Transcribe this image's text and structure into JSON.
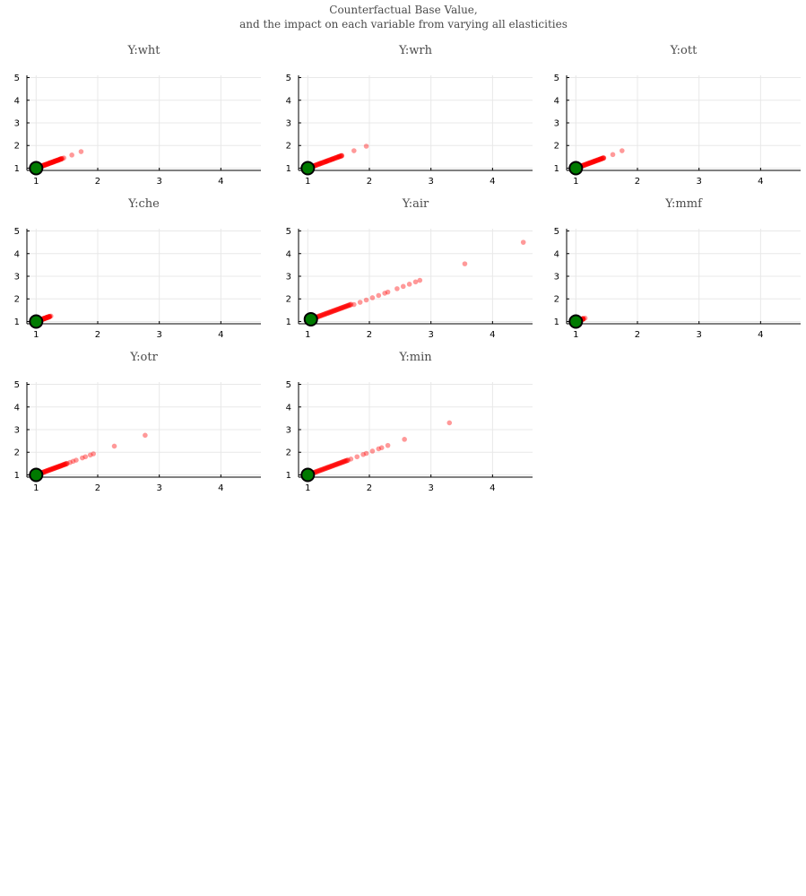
{
  "figure": {
    "title_line1": "Counterfactual Base Value,",
    "title_line2": "and the impact on each variable from varying all elasticities"
  },
  "style": {
    "point_color": "#ff0000",
    "base_color": "#007a00",
    "base_edge": "#000000"
  },
  "chart_data": [
    {
      "type": "scatter",
      "title": "Y:wht",
      "xlim": [
        0.85,
        4.65
      ],
      "ylim": [
        0.9,
        5.1
      ],
      "xticks": [
        1,
        2,
        3,
        4
      ],
      "yticks": [
        1,
        2,
        3,
        4,
        5
      ],
      "grid": true,
      "base": {
        "x": 1.0,
        "y": 1.0
      },
      "dense_to": 1.42,
      "points": [
        [
          1.05,
          1.05
        ],
        [
          1.1,
          1.1
        ],
        [
          1.15,
          1.15
        ],
        [
          1.2,
          1.2
        ],
        [
          1.25,
          1.25
        ],
        [
          1.3,
          1.3
        ],
        [
          1.35,
          1.35
        ],
        [
          1.4,
          1.4
        ],
        [
          1.45,
          1.45
        ],
        [
          1.58,
          1.58
        ],
        [
          1.73,
          1.73
        ]
      ]
    },
    {
      "type": "scatter",
      "title": "Y:wrh",
      "xlim": [
        0.85,
        4.65
      ],
      "ylim": [
        0.9,
        5.1
      ],
      "xticks": [
        1,
        2,
        3,
        4
      ],
      "yticks": [
        1,
        2,
        3,
        4,
        5
      ],
      "grid": true,
      "base": {
        "x": 1.0,
        "y": 1.0
      },
      "dense_to": 1.55,
      "points": [
        [
          1.05,
          1.05
        ],
        [
          1.1,
          1.1
        ],
        [
          1.2,
          1.2
        ],
        [
          1.3,
          1.3
        ],
        [
          1.4,
          1.4
        ],
        [
          1.5,
          1.5
        ],
        [
          1.55,
          1.55
        ],
        [
          1.75,
          1.77
        ],
        [
          1.95,
          1.97
        ]
      ]
    },
    {
      "type": "scatter",
      "title": "Y:ott",
      "xlim": [
        0.85,
        4.65
      ],
      "ylim": [
        0.9,
        5.1
      ],
      "xticks": [
        1,
        2,
        3,
        4
      ],
      "yticks": [
        1,
        2,
        3,
        4,
        5
      ],
      "grid": true,
      "base": {
        "x": 1.0,
        "y": 1.0
      },
      "dense_to": 1.45,
      "points": [
        [
          1.05,
          1.05
        ],
        [
          1.1,
          1.1
        ],
        [
          1.2,
          1.2
        ],
        [
          1.3,
          1.3
        ],
        [
          1.4,
          1.4
        ],
        [
          1.45,
          1.45
        ],
        [
          1.6,
          1.6
        ],
        [
          1.75,
          1.77
        ]
      ]
    },
    {
      "type": "scatter",
      "title": "Y:che",
      "xlim": [
        0.85,
        4.65
      ],
      "ylim": [
        0.9,
        5.1
      ],
      "xticks": [
        1,
        2,
        3,
        4
      ],
      "yticks": [
        1,
        2,
        3,
        4,
        5
      ],
      "grid": true,
      "base": {
        "x": 1.0,
        "y": 1.0
      },
      "dense_to": 1.22,
      "points": [
        [
          1.05,
          1.05
        ],
        [
          1.1,
          1.1
        ],
        [
          1.15,
          1.15
        ],
        [
          1.2,
          1.2
        ],
        [
          1.24,
          1.24
        ]
      ]
    },
    {
      "type": "scatter",
      "title": "Y:air",
      "xlim": [
        0.85,
        4.65
      ],
      "ylim": [
        0.9,
        5.1
      ],
      "xticks": [
        1,
        2,
        3,
        4
      ],
      "yticks": [
        1,
        2,
        3,
        4,
        5
      ],
      "grid": true,
      "base": {
        "x": 1.05,
        "y": 1.1
      },
      "dense_to": 1.7,
      "points": [
        [
          1.75,
          1.75
        ],
        [
          1.85,
          1.85
        ],
        [
          1.95,
          1.95
        ],
        [
          2.05,
          2.05
        ],
        [
          2.15,
          2.15
        ],
        [
          2.25,
          2.25
        ],
        [
          2.3,
          2.3
        ],
        [
          2.45,
          2.45
        ],
        [
          2.55,
          2.55
        ],
        [
          2.65,
          2.65
        ],
        [
          2.75,
          2.75
        ],
        [
          2.82,
          2.82
        ],
        [
          3.55,
          3.55
        ],
        [
          4.5,
          4.5
        ]
      ]
    },
    {
      "type": "scatter",
      "title": "Y:mmf",
      "xlim": [
        0.85,
        4.65
      ],
      "ylim": [
        0.9,
        5.1
      ],
      "xticks": [
        1,
        2,
        3,
        4
      ],
      "yticks": [
        1,
        2,
        3,
        4,
        5
      ],
      "grid": true,
      "base": {
        "x": 1.0,
        "y": 1.0
      },
      "dense_to": 1.12,
      "points": [
        [
          1.05,
          1.05
        ],
        [
          1.1,
          1.1
        ],
        [
          1.15,
          1.15
        ]
      ]
    },
    {
      "type": "scatter",
      "title": "Y:otr",
      "xlim": [
        0.85,
        4.65
      ],
      "ylim": [
        0.9,
        5.1
      ],
      "xticks": [
        1,
        2,
        3,
        4
      ],
      "yticks": [
        1,
        2,
        3,
        4,
        5
      ],
      "grid": true,
      "base": {
        "x": 1.0,
        "y": 1.0
      },
      "dense_to": 1.5,
      "points": [
        [
          1.55,
          1.55
        ],
        [
          1.6,
          1.6
        ],
        [
          1.65,
          1.65
        ],
        [
          1.75,
          1.75
        ],
        [
          1.8,
          1.8
        ],
        [
          1.88,
          1.88
        ],
        [
          1.93,
          1.93
        ],
        [
          2.27,
          2.27
        ],
        [
          2.77,
          2.75
        ]
      ]
    },
    {
      "type": "scatter",
      "title": "Y:min",
      "xlim": [
        0.85,
        4.65
      ],
      "ylim": [
        0.9,
        5.1
      ],
      "xticks": [
        1,
        2,
        3,
        4
      ],
      "yticks": [
        1,
        2,
        3,
        4,
        5
      ],
      "grid": true,
      "base": {
        "x": 1.0,
        "y": 1.0
      },
      "dense_to": 1.65,
      "points": [
        [
          1.7,
          1.7
        ],
        [
          1.8,
          1.8
        ],
        [
          1.9,
          1.9
        ],
        [
          1.95,
          1.95
        ],
        [
          2.05,
          2.05
        ],
        [
          2.15,
          2.15
        ],
        [
          2.2,
          2.2
        ],
        [
          2.3,
          2.3
        ],
        [
          2.57,
          2.57
        ],
        [
          3.3,
          3.3
        ]
      ]
    }
  ]
}
